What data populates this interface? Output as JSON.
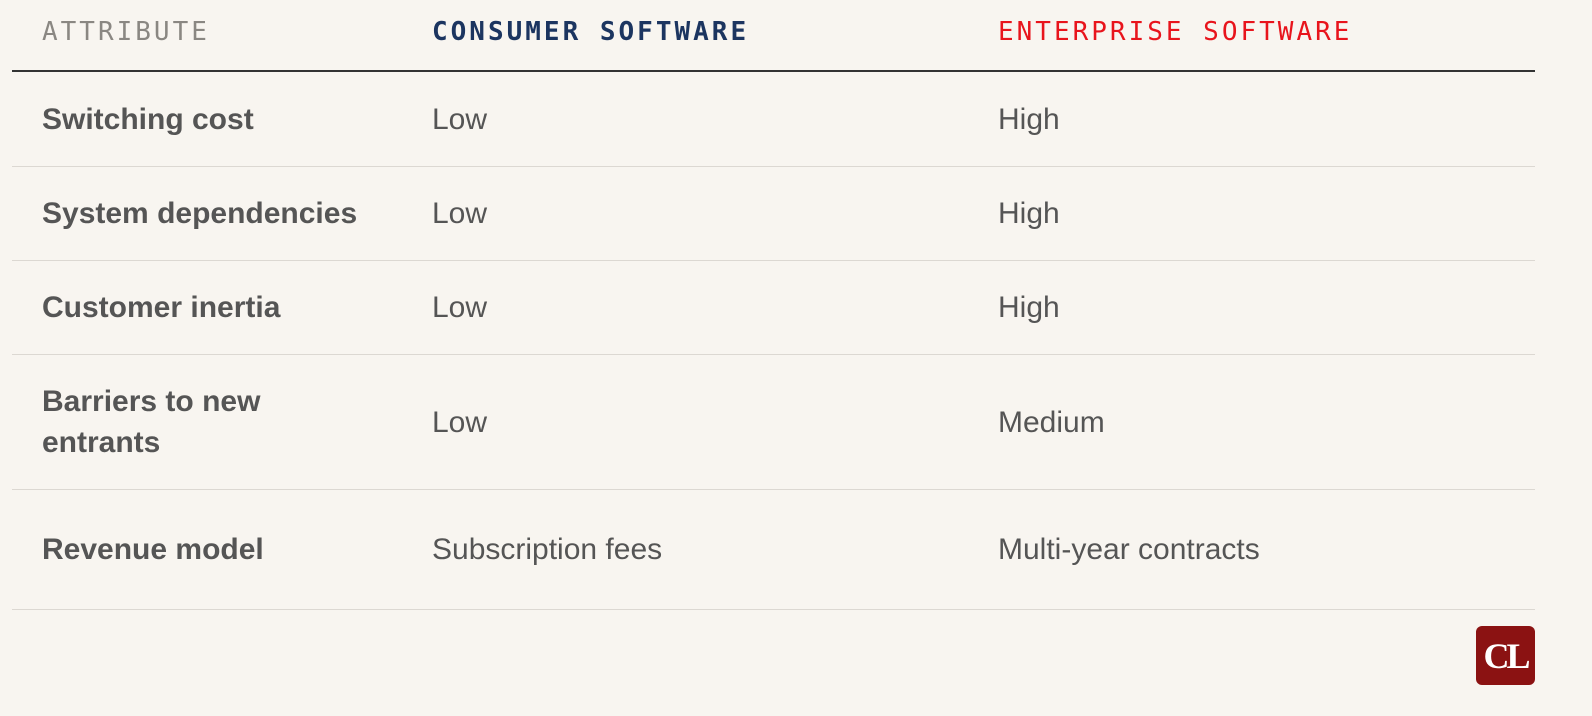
{
  "table": {
    "header": [
      "ATTRIBUTE",
      "CONSUMER SOFTWARE",
      "ENTERPRISE SOFTWARE"
    ],
    "rows": [
      [
        "Switching cost",
        "Low",
        "High"
      ],
      [
        "System dependencies",
        "Low",
        "High"
      ],
      [
        "Customer inertia",
        "Low",
        "High"
      ],
      [
        "Barriers to new entrants",
        "Low",
        "Medium"
      ],
      [
        "Revenue model",
        "Subscription fees",
        "Multi-year contracts"
      ]
    ]
  },
  "logo": "CL"
}
